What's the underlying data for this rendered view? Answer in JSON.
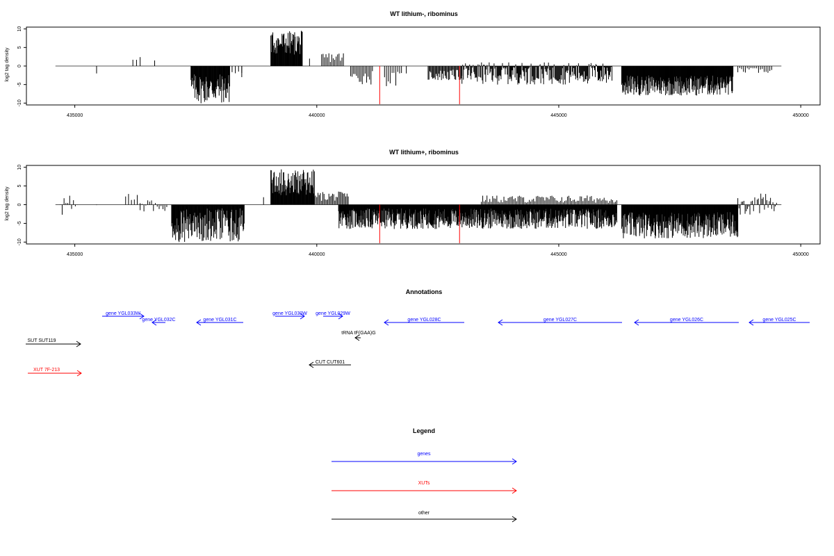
{
  "colors": {
    "gene": "#0000ff",
    "xut": "#ff0000",
    "other": "#000000",
    "bar": "#000000",
    "highlight": "#ff0000"
  },
  "chart_data": [
    {
      "type": "bar",
      "title": "WT lithium-, ribominus",
      "ylabel": "log2 tag density",
      "xlabel": "",
      "xlim": [
        434000,
        450400
      ],
      "ylim": [
        -10.5,
        10.5
      ],
      "x_ticks": [
        "435000",
        "440000",
        "445000",
        "450000"
      ],
      "y_ticks": [
        "10",
        "5",
        "0",
        "-5",
        "-10"
      ],
      "baseline": [
        434600,
        449600
      ],
      "highlight_bars": [
        [
          441300,
          -10.3
        ],
        [
          442950,
          -10.3
        ]
      ],
      "segments": [
        {
          "start": 435450,
          "end": 435450,
          "min": -2.0,
          "max": -2.0,
          "density": 1
        },
        {
          "start": 436200,
          "end": 436350,
          "min": 1.5,
          "max": 2.8,
          "density": 3
        },
        {
          "start": 436650,
          "end": 436650,
          "min": 1.5,
          "max": 1.5,
          "density": 1
        },
        {
          "start": 437400,
          "end": 438200,
          "min": -10.2,
          "max": -2.0,
          "density": 14
        },
        {
          "start": 438250,
          "end": 438450,
          "min": -2.5,
          "max": -1.0,
          "density": 3
        },
        {
          "start": 438450,
          "end": 438450,
          "min": -3.0,
          "max": -3.0,
          "density": 1
        },
        {
          "start": 439050,
          "end": 439700,
          "min": 3.0,
          "max": 9.5,
          "density": 14
        },
        {
          "start": 439850,
          "end": 439850,
          "min": 2.0,
          "max": 2.0,
          "density": 1
        },
        {
          "start": 440100,
          "end": 440550,
          "min": 1.0,
          "max": 3.8,
          "density": 5
        },
        {
          "start": 440700,
          "end": 441150,
          "min": -5.0,
          "max": -1.0,
          "density": 5
        },
        {
          "start": 441400,
          "end": 441750,
          "min": -5.5,
          "max": -1.5,
          "density": 4
        },
        {
          "start": 441850,
          "end": 441850,
          "min": -2.0,
          "max": -2.0,
          "density": 1
        },
        {
          "start": 442300,
          "end": 443000,
          "min": -4.0,
          "max": -1.0,
          "density": 8
        },
        {
          "start": 443000,
          "end": 446100,
          "min": -5.0,
          "max": 1.0,
          "density": 10
        },
        {
          "start": 446300,
          "end": 448600,
          "min": -8.0,
          "max": -2.5,
          "density": 15
        },
        {
          "start": 448700,
          "end": 449400,
          "min": -2.0,
          "max": -0.5,
          "density": 4
        }
      ]
    },
    {
      "type": "bar",
      "title": "WT lithium+, ribominus",
      "ylabel": "log2 tag density",
      "xlabel": "",
      "xlim": [
        434000,
        450400
      ],
      "ylim": [
        -10.5,
        10.5
      ],
      "x_ticks": [
        "435000",
        "440000",
        "445000",
        "450000"
      ],
      "y_ticks": [
        "10",
        "5",
        "0",
        "-5",
        "-10"
      ],
      "baseline": [
        434600,
        449600
      ],
      "highlight_bars": [
        [
          441300,
          -10.3
        ],
        [
          442950,
          -10.3
        ]
      ],
      "segments": [
        {
          "start": 434700,
          "end": 435050,
          "min": -3.0,
          "max": 3.0,
          "density": 4
        },
        {
          "start": 435450,
          "end": 435550,
          "min": -2.0,
          "max": 1.0,
          "density": 2
        },
        {
          "start": 436050,
          "end": 436350,
          "min": -1.0,
          "max": 3.0,
          "density": 3
        },
        {
          "start": 436350,
          "end": 436900,
          "min": -2.0,
          "max": 1.5,
          "density": 4
        },
        {
          "start": 437000,
          "end": 438500,
          "min": -10.0,
          "max": -1.0,
          "density": 14
        },
        {
          "start": 438900,
          "end": 438900,
          "min": 2.0,
          "max": 2.0,
          "density": 1
        },
        {
          "start": 439050,
          "end": 439950,
          "min": 2.5,
          "max": 9.5,
          "density": 14
        },
        {
          "start": 439950,
          "end": 440650,
          "min": 1.0,
          "max": 3.5,
          "density": 6
        },
        {
          "start": 440450,
          "end": 446200,
          "min": -6.5,
          "max": -1.0,
          "density": 16
        },
        {
          "start": 443400,
          "end": 446200,
          "min": 0.5,
          "max": 2.5,
          "density": 5
        },
        {
          "start": 446300,
          "end": 448700,
          "min": -9.0,
          "max": -2.0,
          "density": 16
        },
        {
          "start": 448700,
          "end": 449500,
          "min": -3.0,
          "max": 3.0,
          "density": 6
        }
      ]
    }
  ],
  "annotations": {
    "title": "Annotations",
    "items": [
      {
        "label": "gene YGL033W",
        "type": "gene",
        "dir": "right"
      },
      {
        "label": "gene YGL032C",
        "type": "gene",
        "dir": "left"
      },
      {
        "label": "gene YGL031C",
        "type": "gene",
        "dir": "left"
      },
      {
        "label": "gene YGL030W",
        "type": "gene",
        "dir": "right"
      },
      {
        "label": "gene YGL029W",
        "type": "gene",
        "dir": "right"
      },
      {
        "label": "gene YGL028C",
        "type": "gene",
        "dir": "left"
      },
      {
        "label": "gene YGL027C",
        "type": "gene",
        "dir": "left"
      },
      {
        "label": "gene YGL026C",
        "type": "gene",
        "dir": "left"
      },
      {
        "label": "gene YGL025C",
        "type": "gene",
        "dir": "left"
      },
      {
        "label": "tRNA tF(GAA)G",
        "type": "other",
        "dir": "left"
      },
      {
        "label": "SUT SUT119",
        "type": "other",
        "dir": "right"
      },
      {
        "label": "CUT CUT601",
        "type": "other",
        "dir": "left"
      },
      {
        "label": "XUT 7F-213",
        "type": "xut",
        "dir": "right"
      }
    ]
  },
  "legend": {
    "title": "Legend",
    "items": [
      {
        "label": "genes",
        "type": "gene"
      },
      {
        "label": "XUTs",
        "type": "xut"
      },
      {
        "label": "other",
        "type": "other"
      }
    ]
  }
}
